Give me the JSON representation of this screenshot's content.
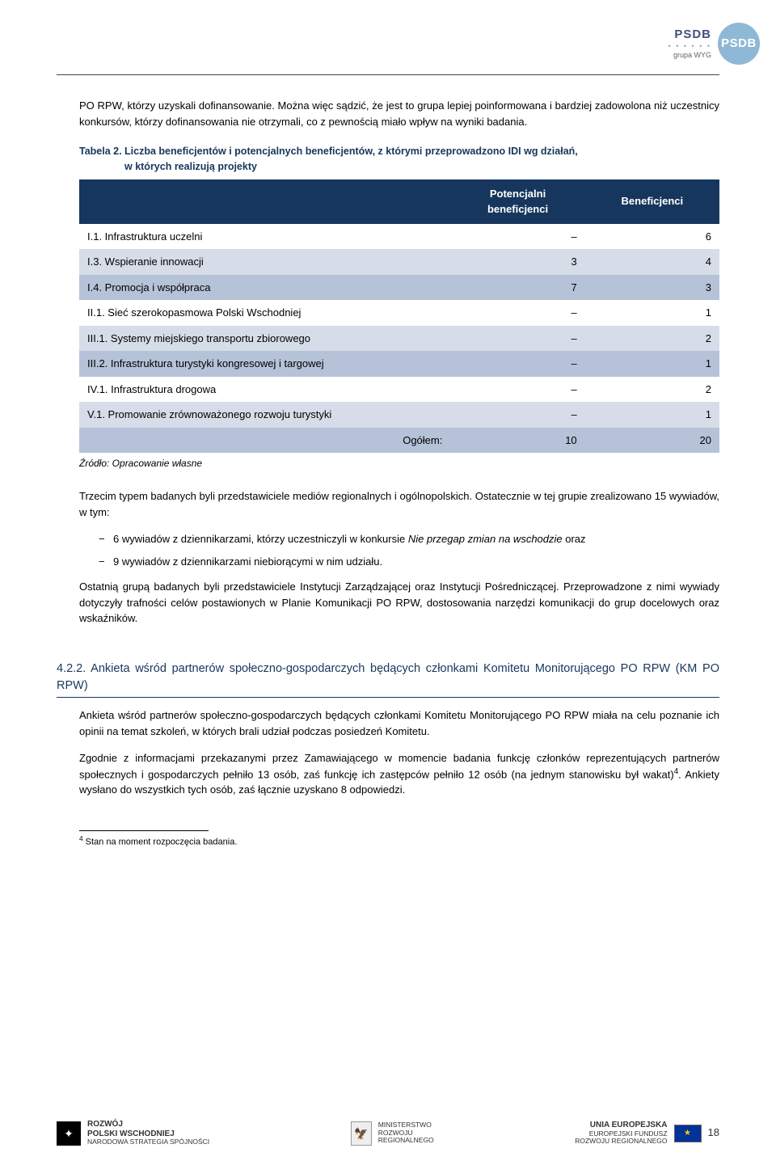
{
  "header": {
    "brand_top": "PSDB",
    "brand_dots": "• • • • • •",
    "brand_sub": "grupa WYG",
    "circle": "PSDB"
  },
  "intro_para": "PO RPW, którzy uzyskali dofinansowanie. Można więc sądzić, że jest to grupa lepiej poinformowana i bardziej zadowolona niż uczestnicy konkursów, którzy dofinansowania nie otrzymali, co z pewnością miało wpływ na wyniki badania.",
  "table": {
    "caption_line1": "Tabela 2. Liczba beneficjentów i potencjalnych beneficjentów, z którymi przeprowadzono IDI wg działań,",
    "caption_line2": "w których realizują projekty",
    "columns": [
      "",
      "Potencjalni beneficjenci",
      "Beneficjenci"
    ],
    "rows": [
      {
        "label": "I.1. Infrastruktura uczelni",
        "c1": "–",
        "c2": "6",
        "cls": "white"
      },
      {
        "label": "I.3. Wspieranie innowacji",
        "c1": "3",
        "c2": "4",
        "cls": "light"
      },
      {
        "label": "I.4. Promocja i współpraca",
        "c1": "7",
        "c2": "3",
        "cls": "med"
      },
      {
        "label": "II.1. Sieć szerokopasmowa Polski Wschodniej",
        "c1": "–",
        "c2": "1",
        "cls": "white"
      },
      {
        "label": "III.1. Systemy miejskiego transportu zbiorowego",
        "c1": "–",
        "c2": "2",
        "cls": "light"
      },
      {
        "label": "III.2. Infrastruktura turystyki kongresowej i targowej",
        "c1": "–",
        "c2": "1",
        "cls": "med"
      },
      {
        "label": "IV.1. Infrastruktura drogowa",
        "c1": "–",
        "c2": "2",
        "cls": "white"
      },
      {
        "label": "V.1. Promowanie zrównoważonego rozwoju turystyki",
        "c1": "–",
        "c2": "1",
        "cls": "light"
      }
    ],
    "total": {
      "label": "Ogółem:",
      "c1": "10",
      "c2": "20",
      "cls": "med"
    },
    "source": "Źródło: Opracowanie własne"
  },
  "para2": "Trzecim typem badanych byli przedstawiciele mediów regionalnych i ogólnopolskich. Ostatecznie w tej grupie zrealizowano 15 wywiadów, w tym:",
  "bullets": [
    {
      "pre": "6 wywiadów z dziennikarzami, którzy uczestniczyli w konkursie ",
      "it": "Nie przegap zmian na wschodzie",
      "post": "  oraz"
    },
    {
      "pre": "9 wywiadów z dziennikarzami niebiorącymi w nim udziału.",
      "it": "",
      "post": ""
    }
  ],
  "para3": "Ostatnią grupą badanych byli przedstawiciele Instytucji Zarządzającej oraz Instytucji Pośredniczącej. Przeprowadzone z nimi wywiady dotyczyły trafności celów postawionych w Planie Komunikacji PO RPW, dostosowania narzędzi komunikacji do grup docelowych oraz wskaźników.",
  "section": {
    "num": "4.2.2.",
    "title": "Ankieta wśród partnerów społeczno-gospodarczych będących członkami Komitetu Monitorującego PO RPW (KM PO RPW)"
  },
  "para4": "Ankieta wśród partnerów społeczno-gospodarczych będących członkami Komitetu Monitorującego PO RPW miała na celu poznanie ich opinii na temat szkoleń, w których brali udział podczas posiedzeń Komitetu.",
  "para5_a": "Zgodnie z informacjami przekazanymi przez Zamawiającego w momencie badania funkcję członków reprezentujących partnerów społecznych i gospodarczych pełniło 13 osób, zaś funkcję ich zastępców pełniło 12 osób (na jednym stanowisku był wakat)",
  "para5_sup": "4",
  "para5_b": ". Ankiety wysłano do wszystkich tych osób, zaś łącznie uzyskano 8 odpowiedzi.",
  "footnote": {
    "num": "4",
    "text": " Stan na moment rozpoczęcia badania."
  },
  "footer": {
    "left": {
      "l1": "ROZWÓJ",
      "l2": "POLSKI WSCHODNIEJ",
      "l3": "NARODOWA STRATEGIA SPÓJNOŚCI"
    },
    "mid": {
      "l1": "MINISTERSTWO",
      "l2": "ROZWOJU",
      "l3": "REGIONALNEGO"
    },
    "right": {
      "l1": "UNIA EUROPEJSKA",
      "l2": "EUROPEJSKI FUNDUSZ",
      "l3": "ROZWOJU REGIONALNEGO"
    },
    "page": "18"
  }
}
